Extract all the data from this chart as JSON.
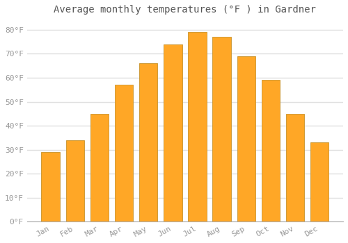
{
  "title": "Average monthly temperatures (°F ) in Gardner",
  "months": [
    "Jan",
    "Feb",
    "Mar",
    "Apr",
    "May",
    "Jun",
    "Jul",
    "Aug",
    "Sep",
    "Oct",
    "Nov",
    "Dec"
  ],
  "values": [
    29,
    34,
    45,
    57,
    66,
    74,
    79,
    77,
    69,
    59,
    45,
    33
  ],
  "bar_color": "#FFA726",
  "bar_edge_color": "#C8922A",
  "background_color": "#FFFFFF",
  "grid_color": "#E0E0E0",
  "ylim": [
    0,
    84
  ],
  "yticks": [
    0,
    10,
    20,
    30,
    40,
    50,
    60,
    70,
    80
  ],
  "ytick_labels": [
    "0°F",
    "10°F",
    "20°F",
    "30°F",
    "40°F",
    "50°F",
    "60°F",
    "70°F",
    "80°F"
  ],
  "title_fontsize": 10,
  "tick_fontsize": 8,
  "tick_color": "#999999",
  "title_color": "#555555"
}
